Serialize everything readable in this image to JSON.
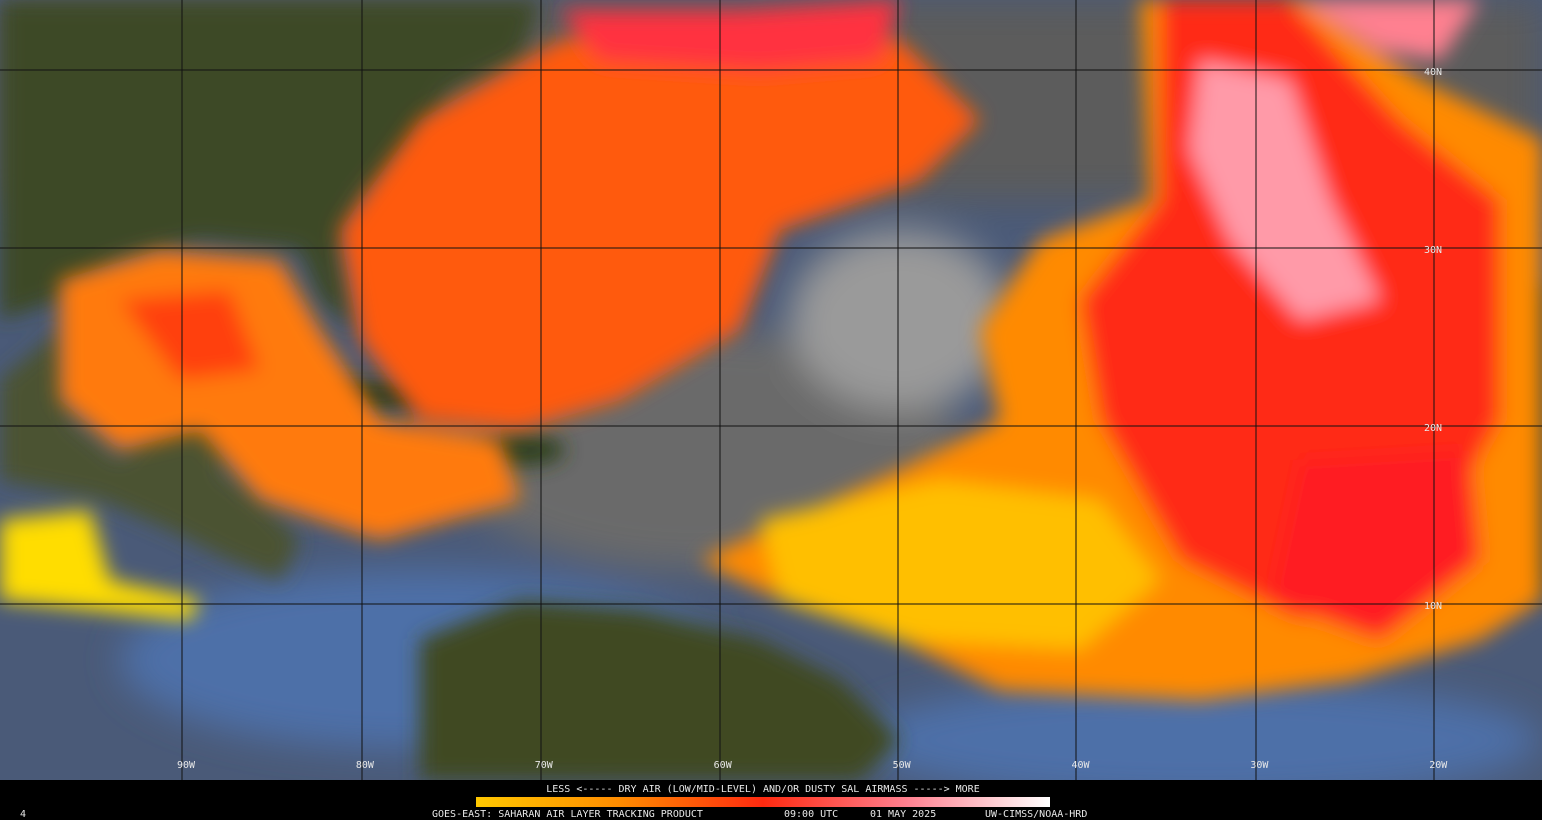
{
  "map": {
    "lon_labels": [
      "90W",
      "80W",
      "70W",
      "60W",
      "50W",
      "40W",
      "30W",
      "20W"
    ],
    "lat_labels": [
      "40N",
      "30N",
      "20N",
      "10N"
    ]
  },
  "legend": {
    "caption": "LESS <----- DRY AIR (LOW/MID-LEVEL) AND/OR DUSTY SAL AIRMASS -----> MORE",
    "product": "GOES-EAST: SAHARAN AIR LAYER TRACKING PRODUCT",
    "time": "09:00 UTC",
    "date": "01 MAY 2025",
    "credit": "UW-CIMSS/NOAA-HRD",
    "frame": "4"
  }
}
